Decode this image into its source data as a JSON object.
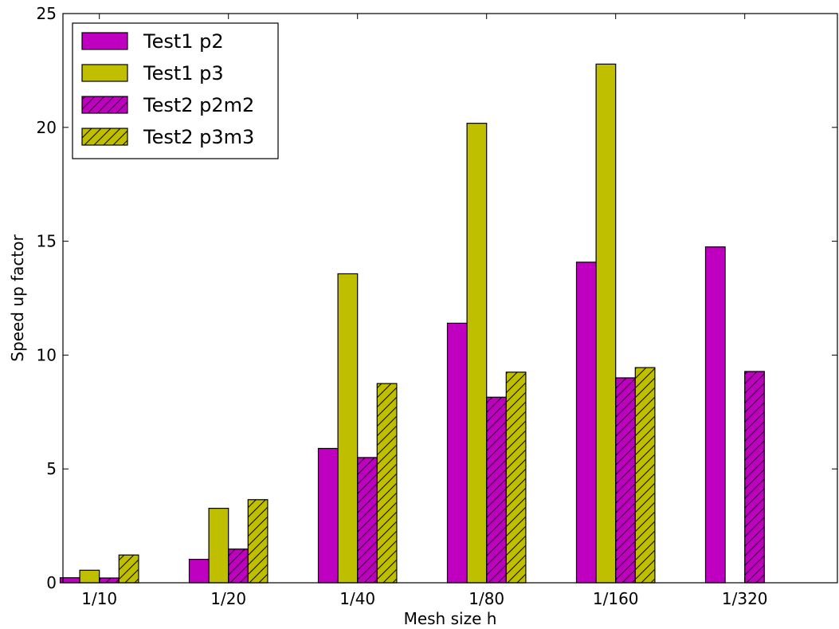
{
  "chart_data": {
    "type": "bar",
    "categories": [
      "1/10",
      "1/20",
      "1/40",
      "1/80",
      "1/160",
      "1/320"
    ],
    "series": [
      {
        "name": "Test1 p2",
        "values": [
          0.22,
          1.03,
          5.9,
          11.4,
          14.08,
          14.75
        ],
        "color": "#c000c0",
        "hatch": false
      },
      {
        "name": "Test1 p3",
        "values": [
          0.55,
          3.27,
          13.57,
          20.18,
          22.78,
          null
        ],
        "color": "#bfbf00",
        "hatch": false
      },
      {
        "name": "Test2 p2m2",
        "values": [
          0.21,
          1.48,
          5.5,
          8.15,
          9.0,
          9.28
        ],
        "color": "#c000c0",
        "hatch": true
      },
      {
        "name": "Test2 p3m3",
        "values": [
          1.22,
          3.65,
          8.75,
          9.25,
          9.45,
          null
        ],
        "color": "#bfbf00",
        "hatch": true
      }
    ],
    "xlabel": "Mesh size h",
    "ylabel": "Speed up factor",
    "ylim": [
      0,
      25
    ],
    "yticks": [
      "0",
      "5",
      "10",
      "15",
      "20",
      "25"
    ],
    "grid": false,
    "legend_position": "top-left"
  }
}
